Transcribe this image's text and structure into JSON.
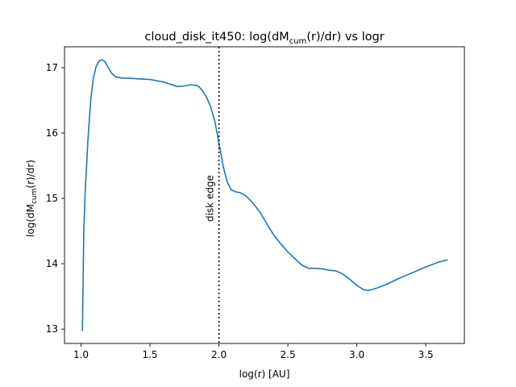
{
  "chart_data": {
    "type": "line",
    "title": {
      "prefix": "cloud_disk_it450: log(dM",
      "sub": "cum",
      "suffix": "(r)/dr) vs logr"
    },
    "xlabel": "log(r) [AU]",
    "ylabel": {
      "prefix": "log(dM",
      "sub": "cum",
      "suffix": "(r)/dr)"
    },
    "xlim": [
      0.88,
      3.78
    ],
    "ylim": [
      12.78,
      17.32
    ],
    "xticks": [
      1.0,
      1.5,
      2.0,
      2.5,
      3.0,
      3.5
    ],
    "xtick_labels": [
      "1.0",
      "1.5",
      "2.0",
      "2.5",
      "3.0",
      "3.5"
    ],
    "yticks": [
      13,
      14,
      15,
      16,
      17
    ],
    "ytick_labels": [
      "13",
      "14",
      "15",
      "16",
      "17"
    ],
    "grid": false,
    "line_color": "#1f77b4",
    "series": [
      {
        "x": [
          1.01,
          1.02,
          1.03,
          1.05,
          1.07,
          1.09,
          1.11,
          1.13,
          1.15,
          1.17,
          1.19,
          1.22,
          1.25,
          1.3,
          1.35,
          1.4,
          1.5,
          1.6,
          1.7,
          1.75,
          1.8,
          1.85,
          1.88,
          1.91,
          1.94,
          1.97,
          2.0,
          2.03,
          2.06,
          2.09,
          2.12,
          2.15,
          2.18,
          2.2,
          2.25,
          2.3,
          2.35,
          2.4,
          2.45,
          2.5,
          2.55,
          2.6,
          2.65,
          2.7,
          2.75,
          2.8,
          2.85,
          2.9,
          2.95,
          3.0,
          3.05,
          3.08,
          3.12,
          3.2,
          3.3,
          3.4,
          3.5,
          3.6,
          3.66
        ],
        "y": [
          12.97,
          14.5,
          15.1,
          15.9,
          16.5,
          16.85,
          17.02,
          17.1,
          17.12,
          17.1,
          17.03,
          16.92,
          16.86,
          16.84,
          16.84,
          16.83,
          16.82,
          16.78,
          16.71,
          16.72,
          16.74,
          16.72,
          16.65,
          16.55,
          16.4,
          16.18,
          15.85,
          15.5,
          15.25,
          15.13,
          15.1,
          15.09,
          15.06,
          15.03,
          14.92,
          14.78,
          14.6,
          14.43,
          14.3,
          14.18,
          14.08,
          13.98,
          13.93,
          13.93,
          13.92,
          13.9,
          13.89,
          13.84,
          13.76,
          13.67,
          13.6,
          13.59,
          13.61,
          13.67,
          13.77,
          13.86,
          13.95,
          14.03,
          14.06
        ]
      }
    ],
    "vline": {
      "x": 2.0,
      "style": "dotted",
      "color": "#000000",
      "label": "disk edge"
    }
  }
}
